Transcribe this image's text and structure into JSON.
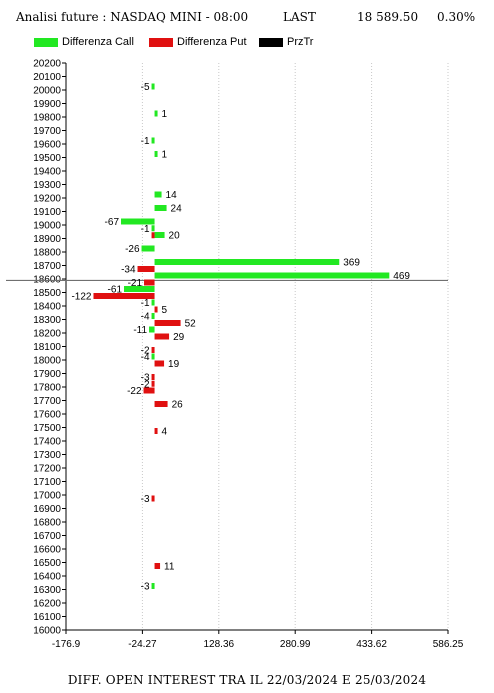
{
  "header": {
    "title": "Analisi future : NASDAQ MINI - 08:00",
    "last_label": "LAST",
    "last_value": "18 589.50",
    "change": "0.30%"
  },
  "legend": [
    {
      "label": "Differenza Call",
      "color": "#22e822"
    },
    {
      "label": "Differenza Put",
      "color": "#e01010"
    },
    {
      "label": "PrzTr",
      "color": "#000000"
    }
  ],
  "footer": "DIFF. OPEN INTEREST TRA IL 22/03/2024 E 25/03/2024",
  "chart_data": {
    "type": "bar",
    "orientation": "horizontal",
    "ylim": [
      16000,
      20200
    ],
    "y_ticks": [
      "20200",
      "20100",
      "20000",
      "19900",
      "19800",
      "19700",
      "19600",
      "19500",
      "19400",
      "19300",
      "19200",
      "19100",
      "19000",
      "18900",
      "18800",
      "18700",
      "18600",
      "18500",
      "18400",
      "18300",
      "18200",
      "18100",
      "18000",
      "17900",
      "17800",
      "17700",
      "17600",
      "17500",
      "17400",
      "17300",
      "17200",
      "17100",
      "17000",
      "16900",
      "16800",
      "16700",
      "16600",
      "16500",
      "16400",
      "16300",
      "16200",
      "16100",
      "16000"
    ],
    "x_ticks": [
      "-176.9",
      "-24.27",
      "128.36",
      "280.99",
      "433.62",
      "586.25"
    ],
    "xlim": [
      -176.9,
      586.25
    ],
    "price_line": 18589.5,
    "series": [
      {
        "name": "Differenza Call",
        "color": "#22e822",
        "points": [
          {
            "strike": 20000,
            "value": -5,
            "label": "-5"
          },
          {
            "strike": 19800,
            "value": 1,
            "label": "1"
          },
          {
            "strike": 19600,
            "value": -1,
            "label": "-1"
          },
          {
            "strike": 19500,
            "value": 1,
            "label": "1"
          },
          {
            "strike": 19200,
            "value": 14,
            "label": "14"
          },
          {
            "strike": 19100,
            "value": 24,
            "label": "24"
          },
          {
            "strike": 19000,
            "value": -67,
            "label": "-67"
          },
          {
            "strike": 18950,
            "value": -1,
            "label": "-1"
          },
          {
            "strike": 18900,
            "value": 20,
            "label": "20"
          },
          {
            "strike": 18800,
            "value": -26,
            "label": "-26"
          },
          {
            "strike": 18700,
            "value": 369,
            "label": "369"
          },
          {
            "strike": 18600,
            "value": 469,
            "label": "469"
          },
          {
            "strike": 18500,
            "value": -61,
            "label": "-61"
          },
          {
            "strike": 18400,
            "value": -1,
            "label": "-1"
          },
          {
            "strike": 18300,
            "value": -4,
            "label": "-4"
          },
          {
            "strike": 18200,
            "value": -11,
            "label": "-11"
          },
          {
            "strike": 18000,
            "value": -4,
            "label": "-4"
          },
          {
            "strike": 16300,
            "value": -3,
            "label": "-3"
          }
        ]
      },
      {
        "name": "Differenza Put",
        "color": "#e01010",
        "points": [
          {
            "strike": 18950,
            "value": -1,
            "label": ""
          },
          {
            "strike": 18700,
            "value": -34,
            "label": "-34"
          },
          {
            "strike": 18600,
            "value": -21,
            "label": "-21"
          },
          {
            "strike": 18500,
            "value": -122,
            "label": "-122"
          },
          {
            "strike": 18400,
            "value": 5,
            "label": "5"
          },
          {
            "strike": 18300,
            "value": 52,
            "label": "52"
          },
          {
            "strike": 18200,
            "value": 29,
            "label": "29"
          },
          {
            "strike": 18100,
            "value": -2,
            "label": "-2"
          },
          {
            "strike": 18000,
            "value": 19,
            "label": "19"
          },
          {
            "strike": 17900,
            "value": -3,
            "label": "-3"
          },
          {
            "strike": 17850,
            "value": -2,
            "label": "-2"
          },
          {
            "strike": 17800,
            "value": -22,
            "label": "-22"
          },
          {
            "strike": 17700,
            "value": 26,
            "label": "26"
          },
          {
            "strike": 17500,
            "value": 4,
            "label": "4"
          },
          {
            "strike": 17000,
            "value": -3,
            "label": "-3"
          },
          {
            "strike": 16500,
            "value": 11,
            "label": "11"
          }
        ]
      }
    ]
  }
}
